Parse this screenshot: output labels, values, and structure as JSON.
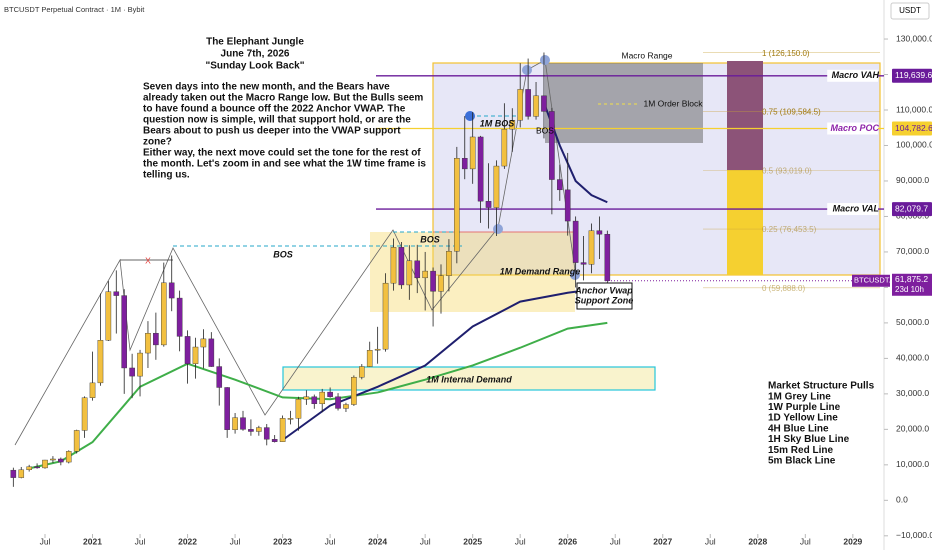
{
  "chart_data": {
    "type": "candlestick",
    "symbol_title": "BTCUSDT Perpetual Contract · 1M · Bybit",
    "currency": "USDT",
    "up_color": "#f2c040",
    "down_color": "#7e1f9e",
    "grid": false,
    "ylim": [
      -14000,
      141000
    ],
    "yticks": [
      {
        "value": 130000,
        "label": "130,000.0"
      },
      {
        "value": 120000,
        "label": "120,000.0"
      },
      {
        "value": 110000,
        "label": "110,000.0"
      },
      {
        "value": 100000,
        "label": "100,000.0"
      },
      {
        "value": 90000,
        "label": "90,000.0"
      },
      {
        "value": 80000,
        "label": "80,000.0"
      },
      {
        "value": 70000,
        "label": "70,000.0"
      },
      {
        "value": 60000,
        "label": "60,000.0"
      },
      {
        "value": 50000,
        "label": "50,000.0"
      },
      {
        "value": 40000,
        "label": "40,000.0"
      },
      {
        "value": 30000,
        "label": "30,000.0"
      },
      {
        "value": 20000,
        "label": "20,000.0"
      },
      {
        "value": 10000,
        "label": "10,000.0"
      },
      {
        "value": 0,
        "label": "0.0"
      },
      {
        "value": -10000,
        "label": "−10,000.0"
      }
    ],
    "xticks": [
      {
        "value": "2020-07",
        "label": "Jul"
      },
      {
        "value": "2021-01",
        "label": "2021"
      },
      {
        "value": "2021-07",
        "label": "Jul"
      },
      {
        "value": "2022-01",
        "label": "2022"
      },
      {
        "value": "2022-07",
        "label": "Jul"
      },
      {
        "value": "2023-01",
        "label": "2023"
      },
      {
        "value": "2023-07",
        "label": "Jul"
      },
      {
        "value": "2024-01",
        "label": "2024"
      },
      {
        "value": "2024-07",
        "label": "Jul"
      },
      {
        "value": "2025-01",
        "label": "2025"
      },
      {
        "value": "2025-07",
        "label": "Jul"
      },
      {
        "value": "2026-01",
        "label": "2026"
      },
      {
        "value": "2026-07",
        "label": "Jul"
      },
      {
        "value": "2027-01",
        "label": "2027"
      },
      {
        "value": "2027-07",
        "label": "Jul"
      },
      {
        "value": "2028-01",
        "label": "2028"
      },
      {
        "value": "2028-07",
        "label": "Jul"
      },
      {
        "value": "2029-01",
        "label": "2029"
      }
    ],
    "candles": [
      {
        "x": "2020-03",
        "open": 8500,
        "high": 9200,
        "low": 3800,
        "close": 6400
      },
      {
        "x": "2020-04",
        "open": 6400,
        "high": 9400,
        "low": 6200,
        "close": 8600
      },
      {
        "x": "2020-05",
        "open": 8600,
        "high": 10000,
        "low": 8100,
        "close": 9450
      },
      {
        "x": "2020-06",
        "open": 9450,
        "high": 10400,
        "low": 8900,
        "close": 9140
      },
      {
        "x": "2020-07",
        "open": 9140,
        "high": 11400,
        "low": 8900,
        "close": 11350
      },
      {
        "x": "2020-08",
        "open": 11350,
        "high": 12470,
        "low": 10550,
        "close": 11650
      },
      {
        "x": "2020-09",
        "open": 11650,
        "high": 12050,
        "low": 9880,
        "close": 10780
      },
      {
        "x": "2020-10",
        "open": 10780,
        "high": 14100,
        "low": 10400,
        "close": 13800
      },
      {
        "x": "2020-11",
        "open": 13800,
        "high": 19900,
        "low": 13200,
        "close": 19700
      },
      {
        "x": "2020-12",
        "open": 19700,
        "high": 29300,
        "low": 17600,
        "close": 28900
      },
      {
        "x": "2021-01",
        "open": 28900,
        "high": 41900,
        "low": 28100,
        "close": 33100
      },
      {
        "x": "2021-02",
        "open": 33100,
        "high": 58300,
        "low": 32300,
        "close": 45100
      },
      {
        "x": "2021-03",
        "open": 45100,
        "high": 61800,
        "low": 44900,
        "close": 58800
      },
      {
        "x": "2021-04",
        "open": 58800,
        "high": 64800,
        "low": 47000,
        "close": 57700
      },
      {
        "x": "2021-05",
        "open": 57700,
        "high": 59500,
        "low": 30000,
        "close": 37300
      },
      {
        "x": "2021-06",
        "open": 37300,
        "high": 41300,
        "low": 28800,
        "close": 35000
      },
      {
        "x": "2021-07",
        "open": 35000,
        "high": 42400,
        "low": 29300,
        "close": 41500
      },
      {
        "x": "2021-08",
        "open": 41500,
        "high": 50500,
        "low": 37300,
        "close": 47100
      },
      {
        "x": "2021-09",
        "open": 47100,
        "high": 52900,
        "low": 39600,
        "close": 43800
      },
      {
        "x": "2021-10",
        "open": 43800,
        "high": 67000,
        "low": 43300,
        "close": 61300
      },
      {
        "x": "2021-11",
        "open": 61300,
        "high": 69000,
        "low": 53300,
        "close": 57000
      },
      {
        "x": "2021-12",
        "open": 57000,
        "high": 59100,
        "low": 42000,
        "close": 46200
      },
      {
        "x": "2022-01",
        "open": 46200,
        "high": 47900,
        "low": 32900,
        "close": 38500
      },
      {
        "x": "2022-02",
        "open": 38500,
        "high": 45800,
        "low": 34300,
        "close": 43200
      },
      {
        "x": "2022-03",
        "open": 43200,
        "high": 48200,
        "low": 37200,
        "close": 45500
      },
      {
        "x": "2022-04",
        "open": 45500,
        "high": 47400,
        "low": 37600,
        "close": 37700
      },
      {
        "x": "2022-05",
        "open": 37700,
        "high": 40000,
        "low": 26700,
        "close": 31800
      },
      {
        "x": "2022-06",
        "open": 31800,
        "high": 31900,
        "low": 17600,
        "close": 19900
      },
      {
        "x": "2022-07",
        "open": 19900,
        "high": 24600,
        "low": 18800,
        "close": 23300
      },
      {
        "x": "2022-08",
        "open": 23300,
        "high": 25200,
        "low": 19600,
        "close": 20000
      },
      {
        "x": "2022-09",
        "open": 20000,
        "high": 22800,
        "low": 18200,
        "close": 19400
      },
      {
        "x": "2022-10",
        "open": 19400,
        "high": 21000,
        "low": 18200,
        "close": 20500
      },
      {
        "x": "2022-11",
        "open": 20500,
        "high": 21500,
        "low": 15500,
        "close": 17200
      },
      {
        "x": "2022-12",
        "open": 17200,
        "high": 18400,
        "low": 16300,
        "close": 16500
      },
      {
        "x": "2023-01",
        "open": 16500,
        "high": 23900,
        "low": 16500,
        "close": 23100
      },
      {
        "x": "2023-02",
        "open": 23100,
        "high": 25200,
        "low": 21400,
        "close": 23100
      },
      {
        "x": "2023-03",
        "open": 23100,
        "high": 29200,
        "low": 19600,
        "close": 28500
      },
      {
        "x": "2023-04",
        "open": 28500,
        "high": 31000,
        "low": 26900,
        "close": 29200
      },
      {
        "x": "2023-05",
        "open": 29200,
        "high": 29800,
        "low": 25800,
        "close": 27200
      },
      {
        "x": "2023-06",
        "open": 27200,
        "high": 31400,
        "low": 24800,
        "close": 30500
      },
      {
        "x": "2023-07",
        "open": 30500,
        "high": 31800,
        "low": 28900,
        "close": 29200
      },
      {
        "x": "2023-08",
        "open": 29200,
        "high": 30200,
        "low": 25300,
        "close": 25900
      },
      {
        "x": "2023-09",
        "open": 25900,
        "high": 27500,
        "low": 24900,
        "close": 27000
      },
      {
        "x": "2023-10",
        "open": 27000,
        "high": 35200,
        "low": 26600,
        "close": 34700
      },
      {
        "x": "2023-11",
        "open": 34700,
        "high": 38400,
        "low": 34100,
        "close": 37700
      },
      {
        "x": "2023-12",
        "open": 37700,
        "high": 44700,
        "low": 37600,
        "close": 42300
      },
      {
        "x": "2024-01",
        "open": 42300,
        "high": 48900,
        "low": 38500,
        "close": 42600
      },
      {
        "x": "2024-02",
        "open": 42600,
        "high": 64000,
        "low": 41900,
        "close": 61200
      },
      {
        "x": "2024-03",
        "open": 61200,
        "high": 73800,
        "low": 59100,
        "close": 71300
      },
      {
        "x": "2024-04",
        "open": 71300,
        "high": 72800,
        "low": 59600,
        "close": 60700
      },
      {
        "x": "2024-05",
        "open": 60700,
        "high": 71900,
        "low": 56500,
        "close": 67500
      },
      {
        "x": "2024-06",
        "open": 67500,
        "high": 72000,
        "low": 58400,
        "close": 62700
      },
      {
        "x": "2024-07",
        "open": 62700,
        "high": 70000,
        "low": 53500,
        "close": 64600
      },
      {
        "x": "2024-08",
        "open": 64600,
        "high": 65600,
        "low": 49000,
        "close": 58900
      },
      {
        "x": "2024-09",
        "open": 58900,
        "high": 66500,
        "low": 52600,
        "close": 63300
      },
      {
        "x": "2024-10",
        "open": 63300,
        "high": 73600,
        "low": 58900,
        "close": 70200
      },
      {
        "x": "2024-11",
        "open": 70200,
        "high": 99600,
        "low": 66800,
        "close": 96400
      },
      {
        "x": "2024-12",
        "open": 96400,
        "high": 108300,
        "low": 90500,
        "close": 93400
      },
      {
        "x": "2025-01",
        "open": 93400,
        "high": 109400,
        "low": 89200,
        "close": 102400
      },
      {
        "x": "2025-02",
        "open": 102400,
        "high": 102700,
        "low": 78200,
        "close": 84300
      },
      {
        "x": "2025-03",
        "open": 84300,
        "high": 95000,
        "low": 76600,
        "close": 82500
      },
      {
        "x": "2025-04",
        "open": 82500,
        "high": 95800,
        "low": 74500,
        "close": 94200
      },
      {
        "x": "2025-05",
        "open": 94200,
        "high": 111900,
        "low": 93400,
        "close": 104600
      },
      {
        "x": "2025-06",
        "open": 104600,
        "high": 110500,
        "low": 98200,
        "close": 107100
      },
      {
        "x": "2025-07",
        "open": 107100,
        "high": 123200,
        "low": 105100,
        "close": 115800
      },
      {
        "x": "2025-08",
        "open": 115800,
        "high": 124500,
        "low": 107300,
        "close": 108200
      },
      {
        "x": "2025-09",
        "open": 108200,
        "high": 117900,
        "low": 107300,
        "close": 114000
      },
      {
        "x": "2025-10",
        "open": 114000,
        "high": 126200,
        "low": 102000,
        "close": 109600
      },
      {
        "x": "2025-11",
        "open": 109600,
        "high": 110600,
        "low": 80600,
        "close": 90400
      },
      {
        "x": "2025-12",
        "open": 90400,
        "high": 94600,
        "low": 84400,
        "close": 87500
      },
      {
        "x": "2026-01",
        "open": 87500,
        "high": 97900,
        "low": 74600,
        "close": 78700
      },
      {
        "x": "2026-02",
        "open": 78700,
        "high": 80000,
        "low": 60000,
        "close": 67000
      },
      {
        "x": "2026-03",
        "open": 67000,
        "high": 74500,
        "low": 62000,
        "close": 66500
      },
      {
        "x": "2026-04",
        "open": 66500,
        "high": 78000,
        "low": 64000,
        "close": 76000
      },
      {
        "x": "2026-05",
        "open": 76000,
        "high": 80000,
        "low": 68000,
        "close": 75000
      },
      {
        "x": "2026-06",
        "open": 75000,
        "high": 76000,
        "low": 60000,
        "close": 61875.2
      }
    ],
    "lines": [
      {
        "color": "#3fae49",
        "x": [
          "2020-05",
          "2020-09",
          "2021-01",
          "2021-07",
          "2022-01",
          "2022-07",
          "2023-01",
          "2023-07",
          "2024-01",
          "2024-07",
          "2025-01",
          "2025-07",
          "2026-01",
          "2026-06"
        ],
        "values": [
          9000,
          11000,
          16400,
          32000,
          38500,
          34000,
          29000,
          28500,
          30400,
          34000,
          38000,
          43000,
          48400,
          50000
        ]
      },
      {
        "color": "#1f1f6e",
        "x": [
          "2023-01",
          "2023-07",
          "2024-01",
          "2024-07",
          "2025-01",
          "2025-07",
          "2026-01",
          "2026-06"
        ],
        "values": [
          17000,
          26700,
          32000,
          38000,
          49000,
          56000,
          58500,
          60000
        ]
      },
      {
        "color": "#1f1f6e",
        "x": [
          "2025-10",
          "2025-12",
          "2026-02",
          "2026-04",
          "2026-06"
        ],
        "values": [
          112000,
          100000,
          90000,
          86000,
          84000
        ]
      }
    ],
    "levels": [
      {
        "name": "Macro VAH",
        "value": 119639.6,
        "value_label": "119,639.6",
        "color": "#6a1b9a"
      },
      {
        "name": "Macro POC",
        "value": 104782.6,
        "value_label": "104,782.6",
        "color": "#f5d030"
      },
      {
        "name": "Macro VAL",
        "value": 82079.7,
        "value_label": "82,079.7",
        "color": "#6a1b9a"
      }
    ],
    "fib_levels": [
      {
        "label": "1 (126,150.0)",
        "value": 126150
      },
      {
        "label": "0.75 (109,584.5)",
        "value": 109584.5
      },
      {
        "label": "0.5 (93,019.0)",
        "value": 93019
      },
      {
        "label": "0.25 (76,453.5)",
        "value": 76453.5
      },
      {
        "label": "0 (59,888.0)",
        "value": 59888
      }
    ],
    "last_price": 61875.2,
    "last_price_label": "61,875.2",
    "countdown": "23d 10h",
    "symbol_tag": "BTCUSDT.P",
    "title_lines": [
      "The Elephant Jungle",
      "June 7th, 2026",
      "\"Sunday Look Back\""
    ],
    "text_lines": [
      " Seven days into the new month, and the Bears have",
      "already taken out the Macro Range low. But the Bulls seem",
      "to have found a bounce off the 2022 Anchor VWAP. The",
      "question now is simple, will that support hold, or are the",
      "Bears about to push us deeper into the VWAP support",
      "zone?",
      "Either way, the next move could set the tone for the rest of",
      "the month. Let's zoom in and see what the 1W time frame is",
      "telling us."
    ],
    "legend_lines": [
      "Market Structure Pulls",
      "1M Grey Line",
      "1W Purple Line",
      "1D Yellow Line",
      "4H Blue Line",
      "1H Sky Blue Line",
      "15m Red Line",
      "5m Black Line"
    ],
    "annotations": [
      "Macro Range",
      "1M Order Block",
      "1M Demand Range",
      "1M Internal Demand",
      "Anchor Vwap",
      "Support Zone",
      "BOS",
      "BOS",
      "1M BOS",
      "BOS",
      "X"
    ]
  }
}
